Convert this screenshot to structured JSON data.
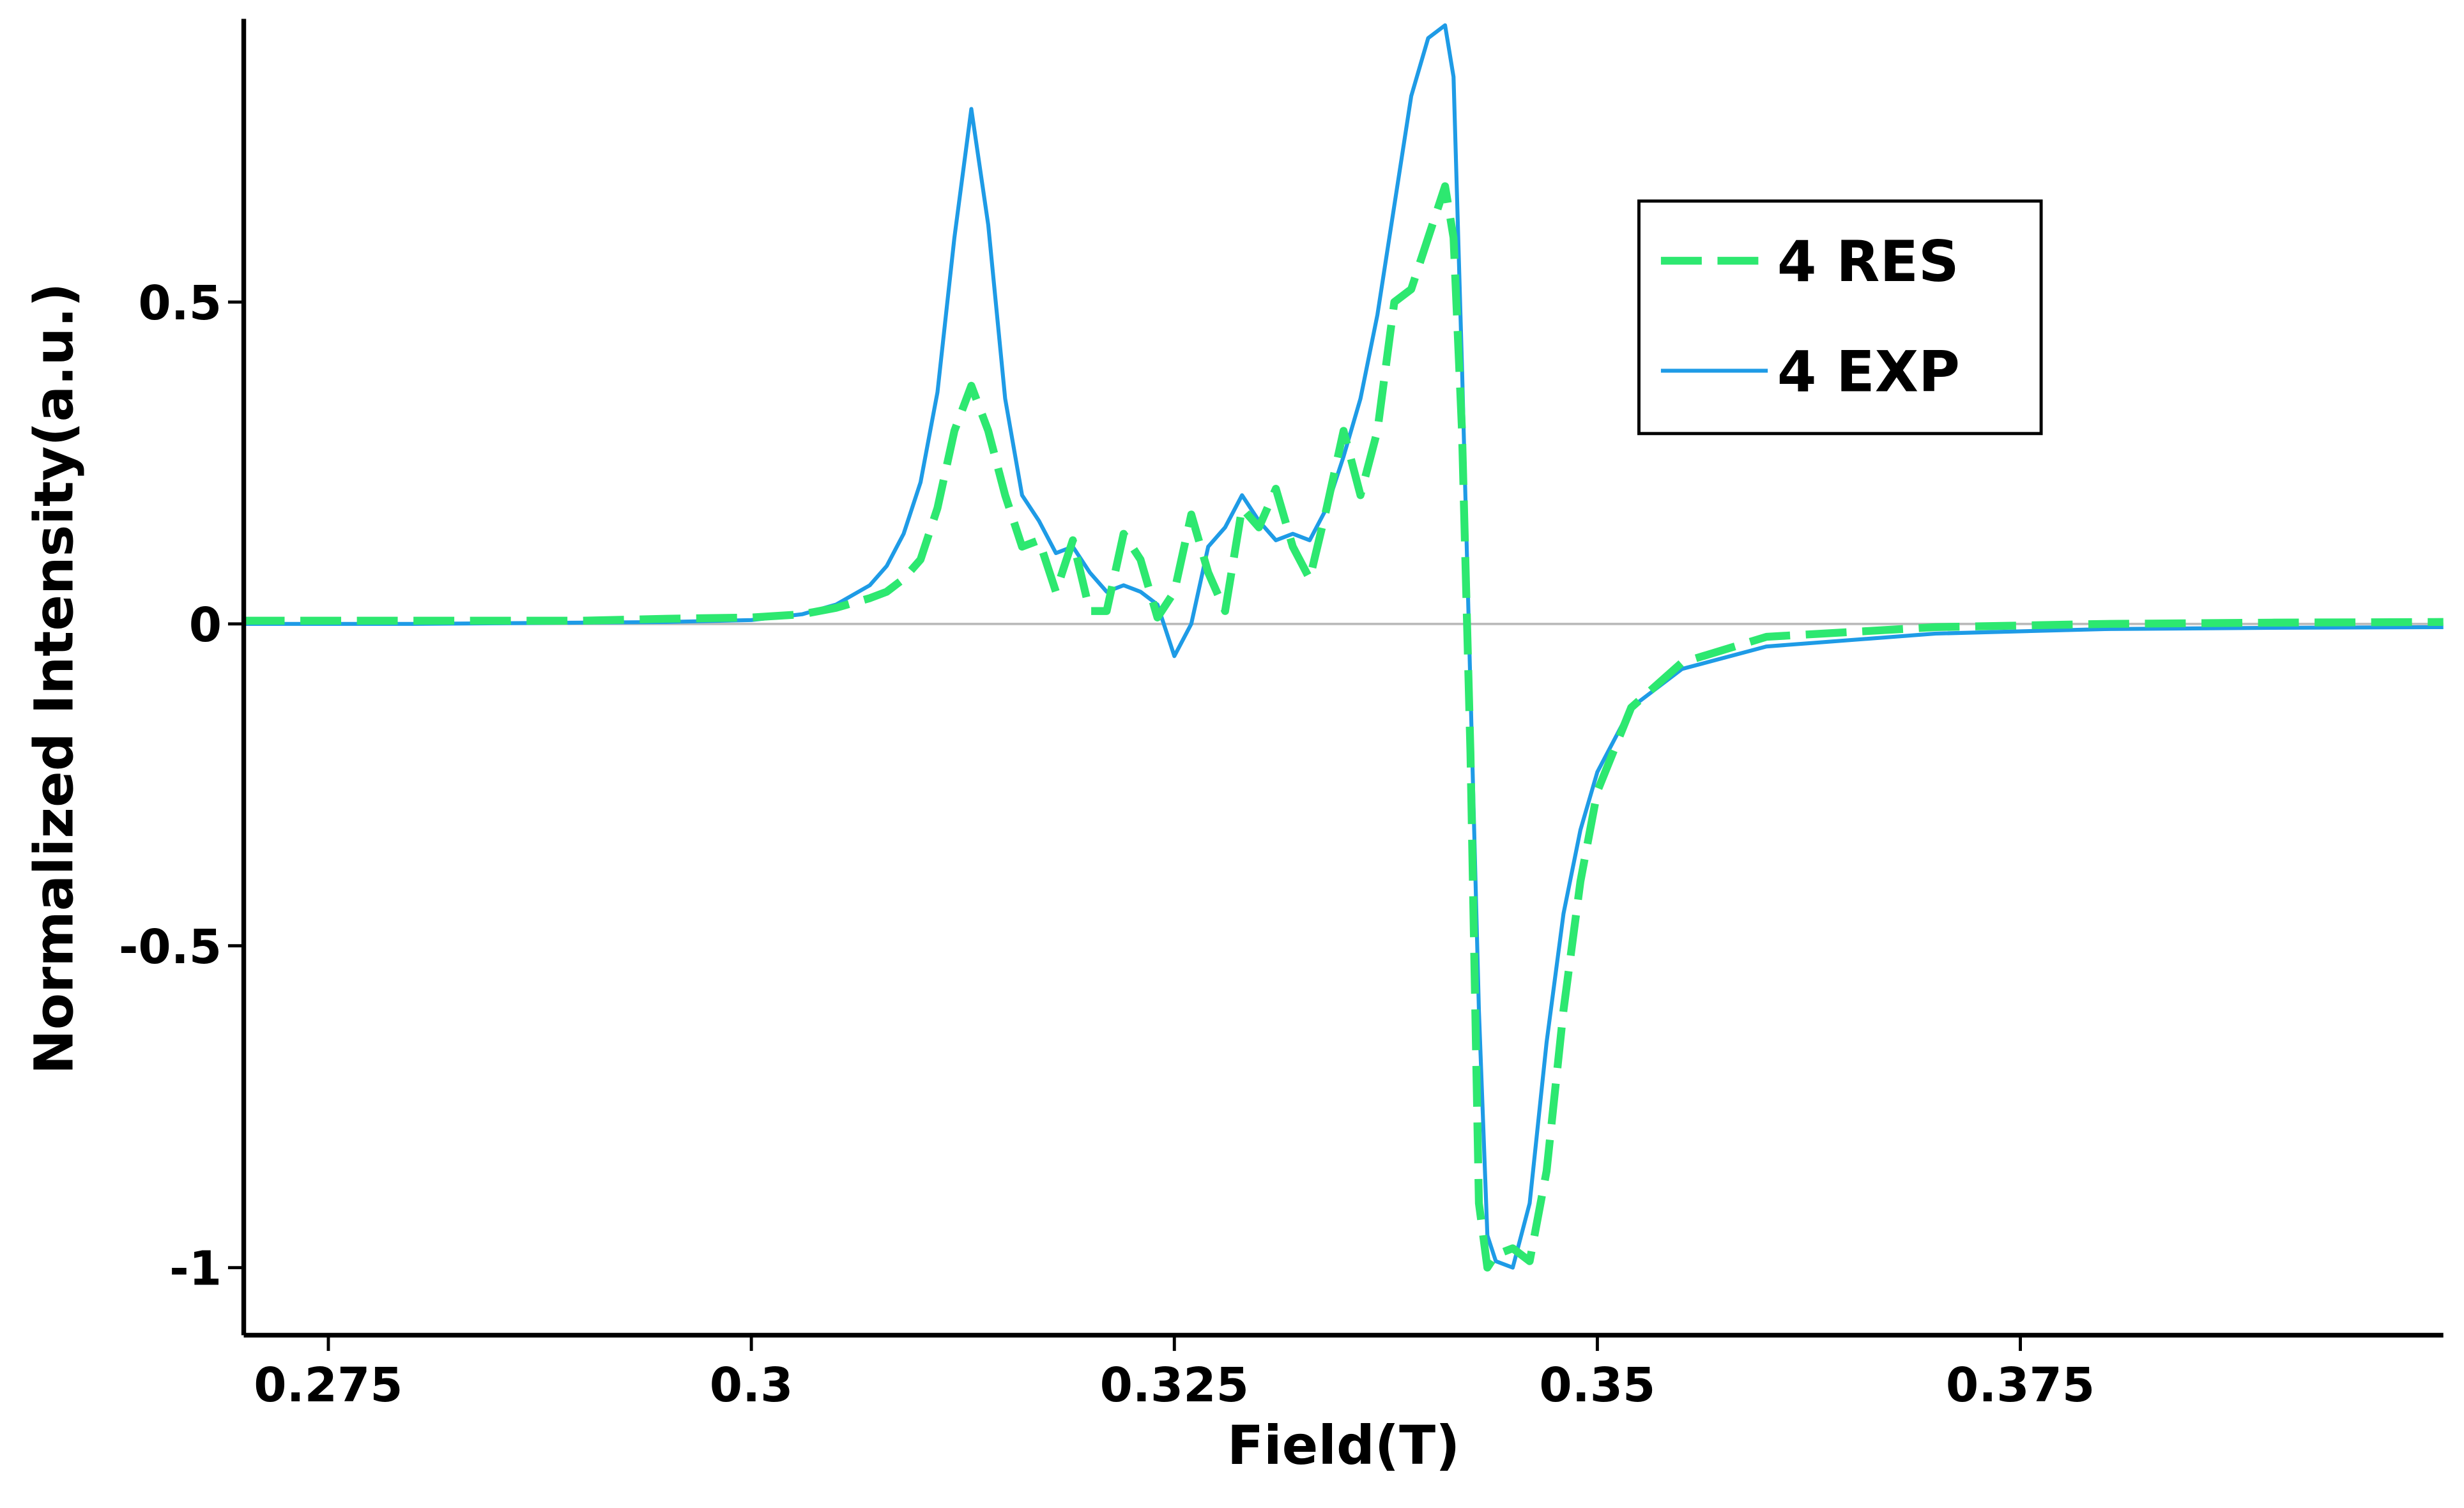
{
  "chart_data": {
    "type": "line",
    "x_label": "Field(T)",
    "y_label": "Normalized Intensity(a.u.)",
    "x": [
      0.27,
      0.28,
      0.29,
      0.295,
      0.3,
      0.303,
      0.305,
      0.307,
      0.308,
      0.309,
      0.31,
      0.311,
      0.312,
      0.313,
      0.314,
      0.315,
      0.316,
      0.317,
      0.318,
      0.319,
      0.32,
      0.321,
      0.322,
      0.323,
      0.324,
      0.325,
      0.326,
      0.327,
      0.328,
      0.329,
      0.33,
      0.331,
      0.332,
      0.333,
      0.334,
      0.335,
      0.336,
      0.337,
      0.338,
      0.339,
      0.34,
      0.341,
      0.3415,
      0.342,
      0.3425,
      0.343,
      0.3435,
      0.344,
      0.345,
      0.346,
      0.347,
      0.348,
      0.349,
      0.35,
      0.352,
      0.355,
      0.36,
      0.37,
      0.38,
      0.39,
      0.4
    ],
    "series": [
      {
        "name": "4 RES",
        "color": "#2de870",
        "linestyle": "dashed",
        "values": [
          0.005,
          0.005,
          0.005,
          0.008,
          0.01,
          0.015,
          0.025,
          0.04,
          0.05,
          0.07,
          0.1,
          0.18,
          0.3,
          0.37,
          0.3,
          0.2,
          0.12,
          0.13,
          0.05,
          0.13,
          0.02,
          0.02,
          0.14,
          0.1,
          0.01,
          0.05,
          0.17,
          0.08,
          0.02,
          0.18,
          0.15,
          0.21,
          0.12,
          0.07,
          0.18,
          0.3,
          0.2,
          0.3,
          0.5,
          0.52,
          0.6,
          0.68,
          0.6,
          0.3,
          -0.2,
          -0.9,
          -1.0,
          -0.98,
          -0.97,
          -0.99,
          -0.85,
          -0.6,
          -0.4,
          -0.26,
          -0.13,
          -0.06,
          -0.02,
          -0.005,
          0.0,
          0.002,
          0.003
        ]
      },
      {
        "name": "4 EXP",
        "color": "#1e9be6",
        "linestyle": "solid",
        "values": [
          0.0,
          0.0,
          0.002,
          0.003,
          0.006,
          0.015,
          0.03,
          0.06,
          0.09,
          0.14,
          0.22,
          0.36,
          0.6,
          0.8,
          0.62,
          0.35,
          0.2,
          0.16,
          0.11,
          0.12,
          0.08,
          0.05,
          0.06,
          0.05,
          0.03,
          -0.05,
          0.0,
          0.12,
          0.15,
          0.2,
          0.16,
          0.13,
          0.14,
          0.13,
          0.18,
          0.26,
          0.35,
          0.48,
          0.65,
          0.82,
          0.91,
          0.93,
          0.85,
          0.4,
          -0.1,
          -0.6,
          -0.95,
          -0.99,
          -1.0,
          -0.9,
          -0.65,
          -0.45,
          -0.32,
          -0.23,
          -0.13,
          -0.07,
          -0.035,
          -0.015,
          -0.008,
          -0.006,
          -0.005
        ]
      }
    ],
    "xlim": [
      0.27,
      0.4
    ],
    "ylim": [
      -1.105,
      0.94
    ],
    "xticks": [
      0.275,
      0.3,
      0.325,
      0.35,
      0.375
    ],
    "yticks": [
      -1,
      -0.5,
      0,
      0.5
    ],
    "zero_line": true,
    "grid": false,
    "legend": "upper right"
  }
}
